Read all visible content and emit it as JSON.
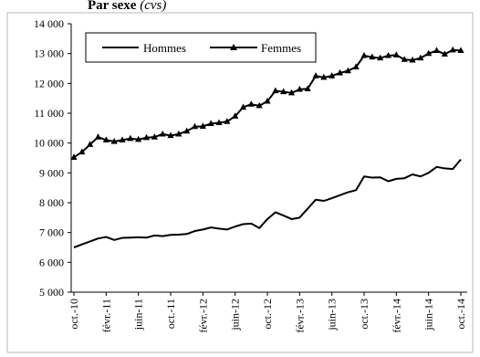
{
  "chart_data": {
    "type": "line",
    "title": "Par sexe",
    "title_unit": "(cvs)",
    "ylim": [
      5000,
      14000
    ],
    "y_ticks": [
      5000,
      6000,
      7000,
      8000,
      9000,
      10000,
      11000,
      12000,
      13000,
      14000
    ],
    "y_tick_labels": [
      "5 000",
      "6 000",
      "7 000",
      "8 000",
      "9 000",
      "10 000",
      "11 000",
      "12 000",
      "13 000",
      "14 000"
    ],
    "x_tick_labels": [
      "oct.-10",
      "févr.-11",
      "juin-11",
      "oct.-11",
      "févr.-12",
      "juin-12",
      "oct.-12",
      "févr.-13",
      "juin-13",
      "oct.-13",
      "févr.-14",
      "juin-14",
      "oct.-14"
    ],
    "legend_position": "top-left",
    "grid": false,
    "x": [
      "2010-10",
      "2010-11",
      "2010-12",
      "2011-01",
      "2011-02",
      "2011-03",
      "2011-04",
      "2011-05",
      "2011-06",
      "2011-07",
      "2011-08",
      "2011-09",
      "2011-10",
      "2011-11",
      "2011-12",
      "2012-01",
      "2012-02",
      "2012-03",
      "2012-04",
      "2012-05",
      "2012-06",
      "2012-07",
      "2012-08",
      "2012-09",
      "2012-10",
      "2012-11",
      "2012-12",
      "2013-01",
      "2013-02",
      "2013-03",
      "2013-04",
      "2013-05",
      "2013-06",
      "2013-07",
      "2013-08",
      "2013-09",
      "2013-10",
      "2013-11",
      "2013-12",
      "2014-01",
      "2014-02",
      "2014-03",
      "2014-04",
      "2014-05",
      "2014-06",
      "2014-07",
      "2014-08",
      "2014-09",
      "2014-10"
    ],
    "series": [
      {
        "name": "Hommes",
        "marker": "none",
        "values": [
          6500,
          6600,
          6700,
          6800,
          6850,
          6750,
          6820,
          6830,
          6840,
          6830,
          6900,
          6880,
          6920,
          6930,
          6950,
          7050,
          7100,
          7170,
          7130,
          7100,
          7200,
          7280,
          7300,
          7150,
          7450,
          7680,
          7570,
          7450,
          7500,
          7800,
          8100,
          8060,
          8150,
          8250,
          8350,
          8420,
          8880,
          8840,
          8850,
          8720,
          8800,
          8820,
          8950,
          8880,
          9000,
          9200,
          9150,
          9130,
          9450
        ]
      },
      {
        "name": "Femmes",
        "marker": "triangle",
        "values": [
          9520,
          9700,
          9950,
          10200,
          10100,
          10050,
          10100,
          10150,
          10120,
          10180,
          10200,
          10300,
          10250,
          10300,
          10400,
          10550,
          10560,
          10650,
          10680,
          10720,
          10900,
          11200,
          11300,
          11250,
          11400,
          11750,
          11720,
          11680,
          11800,
          11820,
          12250,
          12200,
          12250,
          12350,
          12420,
          12550,
          12930,
          12880,
          12850,
          12930,
          12950,
          12800,
          12780,
          12850,
          13000,
          13100,
          12980,
          13120,
          13100
        ]
      }
    ]
  }
}
